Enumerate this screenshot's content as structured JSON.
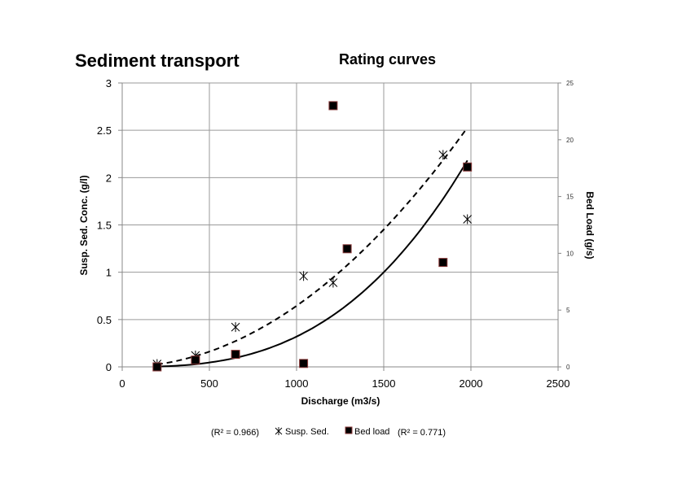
{
  "chart_data": {
    "type": "scatter",
    "title": "Sediment transport",
    "subtitle": "Rating curves",
    "xlabel": "Discharge (m3/s)",
    "ylabel": "Susp. Sed. Conc. (g/l)",
    "y2label": "Bed Load (g/s)",
    "xlim": [
      0,
      2500
    ],
    "ylim": [
      0,
      3
    ],
    "y2lim": [
      0,
      25
    ],
    "xticks": [
      "0",
      "500",
      "1000",
      "1500",
      "2000",
      "2500"
    ],
    "yticks": [
      "0",
      "0.5",
      "1",
      "1.5",
      "2",
      "2.5",
      "3"
    ],
    "y2ticks": [
      "0",
      "5",
      "10",
      "15",
      "20",
      "25"
    ],
    "grid": true,
    "legend_position": "bottom",
    "series": [
      {
        "name": "Susp. Sed.",
        "axis": "left",
        "marker": "star",
        "color": "#000000",
        "x": [
          200,
          420,
          650,
          1040,
          1210,
          1840,
          1980
        ],
        "y": [
          0.03,
          0.12,
          0.42,
          0.96,
          0.89,
          2.24,
          1.56
        ],
        "trendline": {
          "type": "power",
          "style": "dashed",
          "a": 0.645,
          "b": 2.0,
          "x_scale": 1000,
          "x_range": [
            200,
            1970
          ],
          "r2_label": "(R² = 0.966)"
        }
      },
      {
        "name": "Bed load",
        "axis": "right",
        "marker": "square",
        "color": "#000000",
        "edge_color": "#8b3a3a",
        "x": [
          200,
          420,
          650,
          1040,
          1210,
          1290,
          1840,
          1980
        ],
        "y": [
          0.0,
          0.6,
          1.1,
          0.3,
          23.0,
          10.4,
          9.2,
          17.6
        ],
        "trendline": {
          "type": "power",
          "style": "solid",
          "a": 0.32,
          "b": 2.81,
          "x_scale": 1000,
          "x_range": [
            200,
            1980
          ],
          "r2_label": "(R² = 0.771)"
        }
      }
    ],
    "legend": {
      "left_r2": "(R² = 0.966)",
      "susp_label": "Susp. Sed.",
      "bed_label": "Bed load",
      "right_r2": "(R² = 0.771)"
    }
  }
}
